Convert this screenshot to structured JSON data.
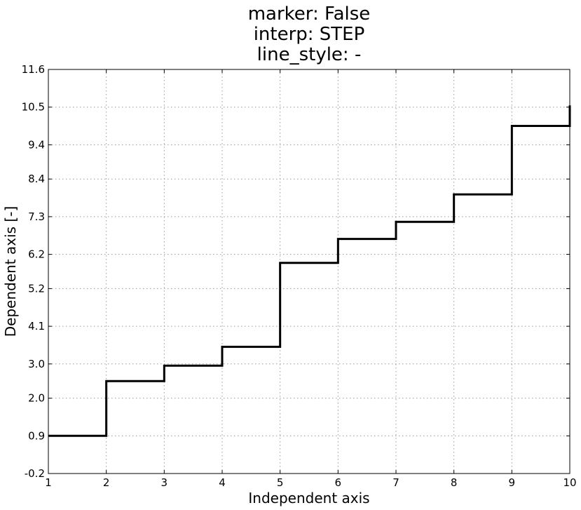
{
  "chart_data": {
    "type": "line",
    "title_lines": [
      "marker: False",
      "interp: STEP",
      "line_style: -"
    ],
    "xlabel": "Independent axis",
    "ylabel": "Dependent axis [-]",
    "xlim": [
      1,
      10
    ],
    "ylim": [
      -0.2,
      11.6
    ],
    "x_ticks": [
      1,
      2,
      3,
      4,
      5,
      6,
      7,
      8,
      9,
      10
    ],
    "y_ticks": [
      -0.2,
      0.9,
      2.0,
      3.0,
      4.1,
      5.2,
      6.2,
      7.3,
      8.4,
      9.4,
      10.5,
      11.6
    ],
    "y_tick_labels": [
      "-0.2",
      "0.9",
      "2.0",
      "3.0",
      "4.1",
      "5.2",
      "6.2",
      "7.3",
      "8.4",
      "9.4",
      "10.5",
      "11.6"
    ],
    "grid": true,
    "interpolation": "step",
    "line_color": "#000000",
    "series": [
      {
        "x": [
          1,
          2,
          3,
          4,
          5,
          6,
          7,
          8,
          9,
          10
        ],
        "y": [
          0.9,
          2.5,
          2.95,
          3.5,
          5.95,
          6.65,
          7.15,
          7.95,
          9.95,
          10.55
        ]
      }
    ]
  }
}
